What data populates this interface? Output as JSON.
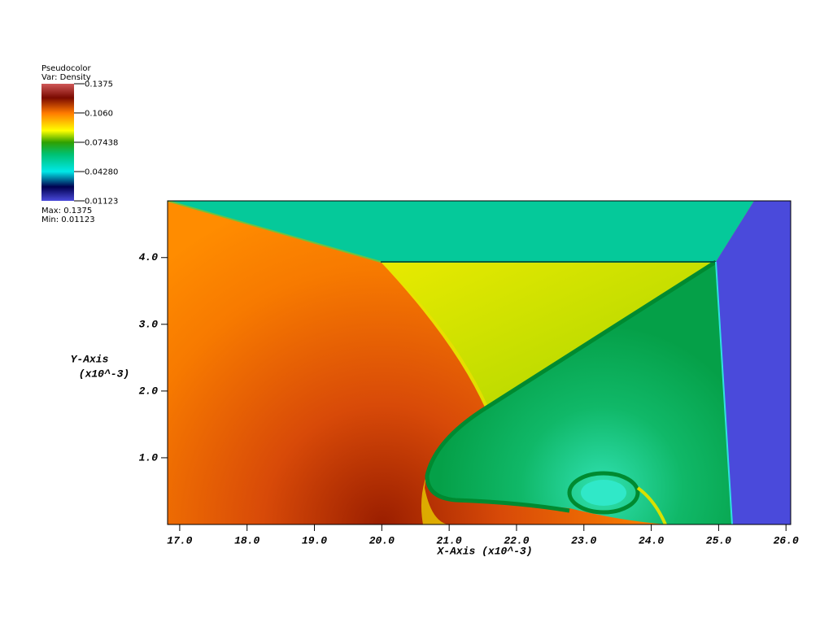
{
  "chart_data": {
    "type": "pseudocolor",
    "legend_title": "Pseudocolor",
    "legend_var": "Var: Density",
    "legend_ticks": [
      0.1375,
      {
        "value": 0.106,
        "label": "0.1060"
      },
      0.07438,
      {
        "value": 0.0428,
        "label": "0.04280"
      },
      0.01123
    ],
    "legend_max": "Max: 0.1375",
    "legend_min": "Min: 0.01123",
    "xlabel": "X-Axis (x10^-3)",
    "ylabel": "Y-Axis",
    "ylabel_units": "(x10^-3)",
    "xlim": [
      16.82,
      26.07
    ],
    "ylim": [
      0,
      4.85
    ],
    "xticks": [
      {
        "value": 17,
        "label": "17.0"
      },
      {
        "value": 18,
        "label": "18.0"
      },
      {
        "value": 19,
        "label": "19.0"
      },
      {
        "value": 20,
        "label": "20.0"
      },
      {
        "value": 21,
        "label": "21.0"
      },
      {
        "value": 22,
        "label": "22.0"
      },
      {
        "value": 23,
        "label": "23.0"
      },
      {
        "value": 24,
        "label": "24.0"
      },
      {
        "value": 25,
        "label": "25.0"
      },
      {
        "value": 26,
        "label": "26.0"
      }
    ],
    "yticks": [
      {
        "value": 1,
        "label": "1.0"
      },
      {
        "value": 2,
        "label": "2.0"
      },
      {
        "value": 3,
        "label": "3.0"
      },
      {
        "value": 4,
        "label": "4.0"
      }
    ]
  }
}
